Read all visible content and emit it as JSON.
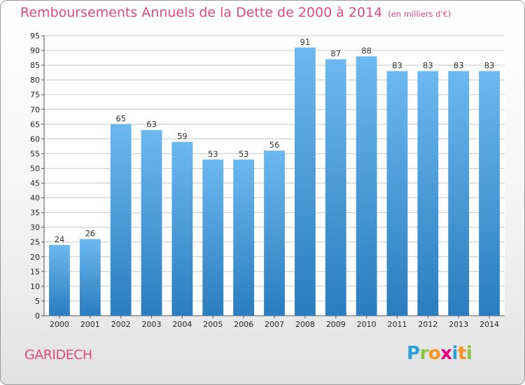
{
  "header": {
    "title": "Remboursements Annuels de la Dette de 2000 à 2014",
    "subtitle": "(en milliers d'€)"
  },
  "footer": {
    "commune": "GARIDECH",
    "logo_letters": [
      "P",
      "r",
      "o",
      "x",
      "i",
      "t",
      "i"
    ],
    "logo_colors": [
      "#2aa0d8",
      "#8cc63f",
      "#f7931e",
      "#e6007e",
      "#2aa0d8",
      "#f7931e",
      "#8cc63f"
    ]
  },
  "colors": {
    "bar_light": "#6cb8f0",
    "bar_dark": "#2a7dbf",
    "accent": "#e14a7e",
    "grid": "#c8c8c8"
  },
  "chart_data": {
    "type": "bar",
    "title": "Remboursements Annuels de la Dette de 2000 à 2014",
    "subtitle": "(en milliers d'€)",
    "xlabel": "",
    "ylabel": "",
    "categories": [
      "2000",
      "2001",
      "2002",
      "2003",
      "2004",
      "2005",
      "2006",
      "2007",
      "2008",
      "2009",
      "2010",
      "2011",
      "2012",
      "2013",
      "2014"
    ],
    "values": [
      24,
      26,
      65,
      63,
      59,
      53,
      53,
      56,
      91,
      87,
      88,
      83,
      83,
      83,
      83
    ],
    "ylim": [
      0,
      95
    ],
    "yticks": [
      0,
      5,
      10,
      15,
      20,
      25,
      30,
      35,
      40,
      45,
      50,
      55,
      60,
      65,
      70,
      75,
      80,
      85,
      90,
      95
    ],
    "grid": true,
    "legend": "none"
  }
}
